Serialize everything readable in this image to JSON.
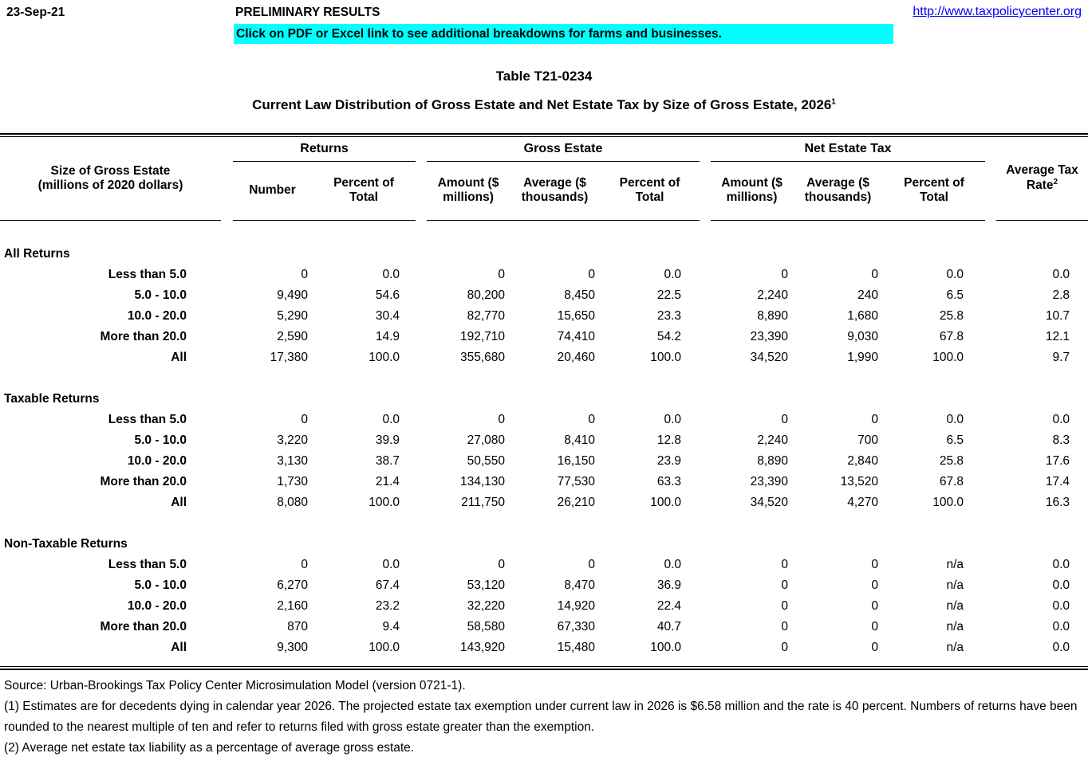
{
  "header": {
    "date": "23-Sep-21",
    "preliminary": "PRELIMINARY RESULTS",
    "url": "http://www.taxpolicycenter.org",
    "banner": "Click on PDF or Excel link to see additional breakdowns for farms and businesses.",
    "banner_color": "#00ffff",
    "link_color": "#0000ff"
  },
  "title": {
    "table_number": "Table T21-0234",
    "subtitle": "Current Law Distribution of Gross Estate and Net Estate Tax by Size of Gross Estate, 2026",
    "subtitle_sup": "1"
  },
  "table": {
    "row_header": "Size of Gross Estate\n(millions of 2020 dollars)",
    "groups": {
      "returns": "Returns",
      "gross_estate": "Gross Estate",
      "net_estate_tax": "Net Estate Tax"
    },
    "columns": [
      "Number",
      "Percent of\nTotal",
      "Amount ($\nmillions)",
      "Average ($\nthousands)",
      "Percent of\nTotal",
      "Amount ($\nmillions)",
      "Average ($\nthousands)",
      "Percent of\nTotal"
    ],
    "avg_tax_rate": "Average Tax\nRate",
    "avg_tax_rate_sup": "2",
    "sections": [
      {
        "name": "All Returns",
        "rows": [
          {
            "label": "Less than 5.0",
            "values": [
              "0",
              "0.0",
              "0",
              "0",
              "0.0",
              "0",
              "0",
              "0.0",
              "0.0"
            ]
          },
          {
            "label": "5.0 - 10.0",
            "values": [
              "9,490",
              "54.6",
              "80,200",
              "8,450",
              "22.5",
              "2,240",
              "240",
              "6.5",
              "2.8"
            ]
          },
          {
            "label": "10.0 - 20.0",
            "values": [
              "5,290",
              "30.4",
              "82,770",
              "15,650",
              "23.3",
              "8,890",
              "1,680",
              "25.8",
              "10.7"
            ]
          },
          {
            "label": "More than 20.0",
            "values": [
              "2,590",
              "14.9",
              "192,710",
              "74,410",
              "54.2",
              "23,390",
              "9,030",
              "67.8",
              "12.1"
            ]
          },
          {
            "label": "All",
            "values": [
              "17,380",
              "100.0",
              "355,680",
              "20,460",
              "100.0",
              "34,520",
              "1,990",
              "100.0",
              "9.7"
            ]
          }
        ]
      },
      {
        "name": "Taxable Returns",
        "rows": [
          {
            "label": "Less than 5.0",
            "values": [
              "0",
              "0.0",
              "0",
              "0",
              "0.0",
              "0",
              "0",
              "0.0",
              "0.0"
            ]
          },
          {
            "label": "5.0 - 10.0",
            "values": [
              "3,220",
              "39.9",
              "27,080",
              "8,410",
              "12.8",
              "2,240",
              "700",
              "6.5",
              "8.3"
            ]
          },
          {
            "label": "10.0 - 20.0",
            "values": [
              "3,130",
              "38.7",
              "50,550",
              "16,150",
              "23.9",
              "8,890",
              "2,840",
              "25.8",
              "17.6"
            ]
          },
          {
            "label": "More than 20.0",
            "values": [
              "1,730",
              "21.4",
              "134,130",
              "77,530",
              "63.3",
              "23,390",
              "13,520",
              "67.8",
              "17.4"
            ]
          },
          {
            "label": "All",
            "values": [
              "8,080",
              "100.0",
              "211,750",
              "26,210",
              "100.0",
              "34,520",
              "4,270",
              "100.0",
              "16.3"
            ]
          }
        ]
      },
      {
        "name": "Non-Taxable Returns",
        "rows": [
          {
            "label": "Less than 5.0",
            "values": [
              "0",
              "0.0",
              "0",
              "0",
              "0.0",
              "0",
              "0",
              "n/a",
              "0.0"
            ]
          },
          {
            "label": "5.0 - 10.0",
            "values": [
              "6,270",
              "67.4",
              "53,120",
              "8,470",
              "36.9",
              "0",
              "0",
              "n/a",
              "0.0"
            ]
          },
          {
            "label": "10.0 - 20.0",
            "values": [
              "2,160",
              "23.2",
              "32,220",
              "14,920",
              "22.4",
              "0",
              "0",
              "n/a",
              "0.0"
            ]
          },
          {
            "label": "More than 20.0",
            "values": [
              "870",
              "9.4",
              "58,580",
              "67,330",
              "40.7",
              "0",
              "0",
              "n/a",
              "0.0"
            ]
          },
          {
            "label": "All",
            "values": [
              "9,300",
              "100.0",
              "143,920",
              "15,480",
              "100.0",
              "0",
              "0",
              "n/a",
              "0.0"
            ]
          }
        ]
      }
    ]
  },
  "footer": {
    "source": "Source: Urban-Brookings Tax Policy Center Microsimulation Model (version 0721-1).",
    "note1": "(1) Estimates are for decedents dying in calendar year 2026. The projected estate tax exemption under current law in 2026 is $6.58 million and the rate is 40 percent. Numbers of returns have been rounded to the nearest multiple of ten and refer to returns filed with gross estate greater than the exemption.",
    "note2": "(2) Average net estate tax liability as a percentage of average gross estate."
  }
}
